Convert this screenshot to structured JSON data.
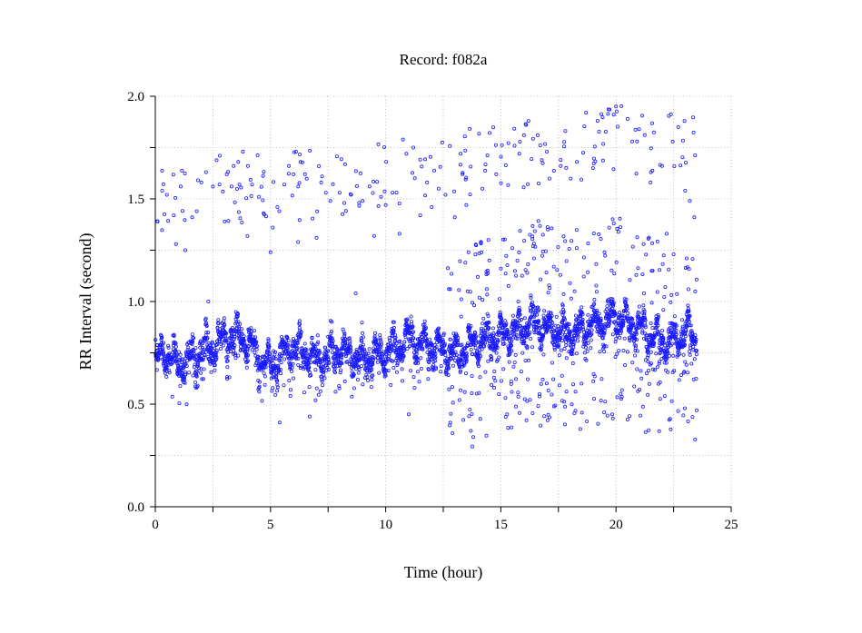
{
  "chart_data": {
    "type": "scatter",
    "title": "Record:  f082a",
    "xlabel": "Time (hour)",
    "ylabel": "RR Interval (second)",
    "xlim": [
      0,
      25
    ],
    "ylim": [
      0,
      2
    ],
    "x_ticks": [
      0,
      5,
      10,
      15,
      20,
      25
    ],
    "x_tick_labels": [
      "0",
      "5",
      "10",
      "15",
      "20",
      "25"
    ],
    "x_minor_ticks": [
      2.5,
      7.5,
      12.5,
      17.5,
      22.5
    ],
    "y_ticks": [
      0,
      0.5,
      1,
      1.5,
      2
    ],
    "y_tick_labels": [
      "0.0",
      "0.5",
      "1.0",
      "1.5",
      "2.0"
    ],
    "y_minor_ticks": [
      0.25,
      0.75,
      1.25,
      1.75
    ],
    "grid": true,
    "marker": "open-circle",
    "color": "#1a1aff",
    "series": [
      {
        "baseline": [
          [
            0,
            0.72
          ],
          [
            0.5,
            0.74
          ],
          [
            1,
            0.7
          ],
          [
            1.5,
            0.72
          ],
          [
            2,
            0.76
          ],
          [
            2.5,
            0.78
          ],
          [
            3,
            0.82
          ],
          [
            3.5,
            0.84
          ],
          [
            4,
            0.8
          ],
          [
            4.5,
            0.74
          ],
          [
            5,
            0.68
          ],
          [
            5.5,
            0.74
          ],
          [
            6,
            0.78
          ],
          [
            6.5,
            0.76
          ],
          [
            7,
            0.72
          ],
          [
            7.5,
            0.74
          ],
          [
            8,
            0.76
          ],
          [
            8.5,
            0.74
          ],
          [
            9,
            0.72
          ],
          [
            9.5,
            0.74
          ],
          [
            10,
            0.76
          ],
          [
            10.5,
            0.78
          ],
          [
            11,
            0.82
          ],
          [
            11.5,
            0.8
          ],
          [
            12,
            0.78
          ],
          [
            12.5,
            0.76
          ],
          [
            13,
            0.74
          ],
          [
            13.5,
            0.78
          ],
          [
            14,
            0.8
          ],
          [
            14.5,
            0.82
          ],
          [
            15,
            0.84
          ],
          [
            15.5,
            0.85
          ],
          [
            16,
            0.88
          ],
          [
            16.5,
            0.9
          ],
          [
            17,
            0.87
          ],
          [
            17.5,
            0.86
          ],
          [
            18,
            0.85
          ],
          [
            18.5,
            0.86
          ],
          [
            19,
            0.88
          ],
          [
            19.5,
            0.9
          ],
          [
            20,
            0.93
          ],
          [
            20.5,
            0.9
          ],
          [
            21,
            0.88
          ],
          [
            21.5,
            0.84
          ],
          [
            22,
            0.8
          ],
          [
            22.5,
            0.82
          ],
          [
            23,
            0.86
          ],
          [
            23.5,
            0.82
          ]
        ],
        "outliers": [
          [
            0.1,
            1.39
          ],
          [
            0.3,
            1.54
          ],
          [
            0.5,
            1.52
          ],
          [
            0.8,
            1.42
          ],
          [
            0.9,
            1.28
          ],
          [
            1.1,
            1.56
          ],
          [
            1.3,
            1.25
          ],
          [
            1.6,
            1.41
          ],
          [
            1.8,
            1.44
          ],
          [
            2.0,
            1.58
          ],
          [
            2.2,
            1.63
          ],
          [
            2.3,
            1.0
          ],
          [
            2.5,
            1.56
          ],
          [
            2.8,
            1.71
          ],
          [
            3.1,
            1.62
          ],
          [
            3.4,
            1.66
          ],
          [
            3.6,
            1.68
          ],
          [
            3.8,
            1.73
          ],
          [
            4.0,
            1.32
          ],
          [
            4.2,
            1.57
          ],
          [
            4.5,
            1.51
          ],
          [
            4.7,
            1.43
          ],
          [
            5.0,
            1.24
          ],
          [
            5.1,
            1.36
          ],
          [
            5.3,
            1.46
          ],
          [
            5.4,
            0.41
          ],
          [
            5.6,
            1.57
          ],
          [
            5.8,
            1.66
          ],
          [
            6.0,
            1.62
          ],
          [
            6.2,
            1.29
          ],
          [
            6.3,
            1.68
          ],
          [
            6.5,
            1.62
          ],
          [
            6.7,
            0.44
          ],
          [
            7.0,
            1.31
          ],
          [
            7.2,
            1.58
          ],
          [
            7.4,
            1.53
          ],
          [
            7.6,
            1.49
          ],
          [
            8.0,
            1.53
          ],
          [
            8.2,
            1.48
          ],
          [
            8.5,
            1.52
          ],
          [
            8.7,
            1.04
          ],
          [
            9.0,
            1.49
          ],
          [
            9.3,
            1.56
          ],
          [
            9.5,
            1.32
          ],
          [
            9.8,
            1.51
          ],
          [
            10.0,
            1.47
          ],
          [
            10.3,
            1.53
          ],
          [
            10.6,
            1.33
          ],
          [
            10.9,
            1.72
          ],
          [
            11.0,
            0.45
          ],
          [
            11.2,
            1.75
          ],
          [
            11.5,
            1.42
          ],
          [
            11.8,
            1.58
          ],
          [
            12.0,
            1.46
          ],
          [
            12.3,
            1.55
          ],
          [
            12.6,
            1.52
          ],
          [
            12.8,
            1.06
          ],
          [
            13.0,
            1.41
          ],
          [
            13.2,
            0.52
          ],
          [
            13.5,
            1.47
          ],
          [
            13.7,
            0.37
          ],
          [
            13.8,
            0.34
          ],
          [
            14.0,
            1.12
          ],
          [
            14.2,
            1.55
          ],
          [
            14.5,
            1.2
          ],
          [
            14.8,
            1.62
          ],
          [
            15.0,
            1.16
          ],
          [
            15.2,
            0.53
          ],
          [
            15.5,
            1.26
          ],
          [
            15.8,
            1.72
          ],
          [
            16.0,
            1.81
          ],
          [
            16.2,
            1.88
          ],
          [
            16.4,
            1.27
          ],
          [
            16.6,
            1.81
          ],
          [
            17.0,
            1.73
          ],
          [
            17.3,
            1.17
          ],
          [
            17.6,
            1.69
          ],
          [
            18.0,
            1.09
          ],
          [
            18.3,
            1.68
          ],
          [
            18.5,
            0.6
          ],
          [
            18.7,
            1.92
          ],
          [
            19.0,
            1.65
          ],
          [
            19.2,
            1.88
          ],
          [
            19.5,
            1.24
          ],
          [
            19.7,
            1.36
          ],
          [
            19.9,
            1.91
          ],
          [
            20.0,
            1.95
          ],
          [
            20.2,
            0.55
          ],
          [
            20.5,
            1.89
          ],
          [
            20.7,
            1.78
          ],
          [
            21.0,
            1.84
          ],
          [
            21.2,
            1.28
          ],
          [
            21.5,
            1.58
          ],
          [
            21.8,
            0.68
          ],
          [
            22.0,
            1.66
          ],
          [
            22.2,
            1.33
          ],
          [
            22.5,
            1.23
          ],
          [
            22.7,
            1.85
          ],
          [
            23.0,
            1.54
          ],
          [
            23.2,
            1.49
          ],
          [
            23.4,
            1.41
          ],
          [
            23.5,
            0.47
          ]
        ]
      }
    ]
  }
}
